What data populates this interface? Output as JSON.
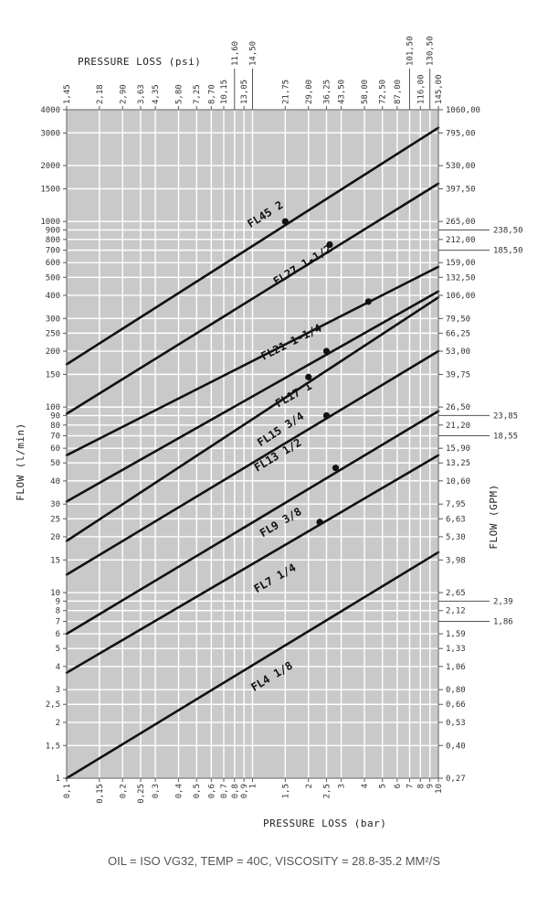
{
  "chart_data": {
    "type": "line",
    "title": "",
    "top_axis_title": "PRESSURE LOSS (psi)",
    "bottom_axis_title": "PRESSURE LOSS (bar)",
    "left_axis_title": "FLOW (l/min)",
    "right_axis_title": "FLOW (GPM)",
    "x_scale": "log",
    "y_scale": "log",
    "xlim": [
      0.1,
      10
    ],
    "ylim": [
      1,
      4000
    ],
    "grid": true,
    "x_ticks": [
      {
        "v": 0.1,
        "label": "0,1"
      },
      {
        "v": 0.15,
        "label": "0,15"
      },
      {
        "v": 0.2,
        "label": "0,2"
      },
      {
        "v": 0.25,
        "label": "0,25"
      },
      {
        "v": 0.3,
        "label": "0,3"
      },
      {
        "v": 0.4,
        "label": "0,4"
      },
      {
        "v": 0.5,
        "label": "0,5"
      },
      {
        "v": 0.6,
        "label": "0,6"
      },
      {
        "v": 0.7,
        "label": "0,7"
      },
      {
        "v": 0.8,
        "label": "0,8"
      },
      {
        "v": 0.9,
        "label": "0,9"
      },
      {
        "v": 1,
        "label": "1"
      },
      {
        "v": 1.5,
        "label": "1,5"
      },
      {
        "v": 2,
        "label": "2"
      },
      {
        "v": 2.5,
        "label": "2,5"
      },
      {
        "v": 3,
        "label": "3"
      },
      {
        "v": 4,
        "label": "4"
      },
      {
        "v": 5,
        "label": "5"
      },
      {
        "v": 6,
        "label": "6"
      },
      {
        "v": 7,
        "label": "7"
      },
      {
        "v": 8,
        "label": "8"
      },
      {
        "v": 9,
        "label": "9"
      },
      {
        "v": 10,
        "label": "10"
      }
    ],
    "psi_ticks_low": [
      {
        "v": 0.1,
        "label": "1,45"
      },
      {
        "v": 0.15,
        "label": "2,18"
      },
      {
        "v": 0.2,
        "label": "2,90"
      },
      {
        "v": 0.25,
        "label": "3,63"
      },
      {
        "v": 0.3,
        "label": "4,35"
      },
      {
        "v": 0.4,
        "label": "5,80"
      },
      {
        "v": 0.5,
        "label": "7,25"
      },
      {
        "v": 0.6,
        "label": "8,70"
      },
      {
        "v": 0.7,
        "label": "10,15"
      },
      {
        "v": 0.9,
        "label": "13,05"
      },
      {
        "v": 1.5,
        "label": "21,75"
      },
      {
        "v": 2,
        "label": "29,00"
      },
      {
        "v": 2.5,
        "label": "36,25"
      },
      {
        "v": 3,
        "label": "43,50"
      },
      {
        "v": 4,
        "label": "58,00"
      },
      {
        "v": 5,
        "label": "72,50"
      },
      {
        "v": 6,
        "label": "87,00"
      },
      {
        "v": 8,
        "label": "116,00"
      },
      {
        "v": 10,
        "label": "145,00"
      }
    ],
    "psi_ticks_high": [
      {
        "v": 0.8,
        "label": "11,60"
      },
      {
        "v": 1,
        "label": "14,50"
      },
      {
        "v": 7,
        "label": "101,50"
      },
      {
        "v": 9,
        "label": "130,50"
      }
    ],
    "y_ticks": [
      {
        "v": 1,
        "label": "1"
      },
      {
        "v": 1.5,
        "label": "1,5"
      },
      {
        "v": 2,
        "label": "2"
      },
      {
        "v": 2.5,
        "label": "2,5"
      },
      {
        "v": 3,
        "label": "3"
      },
      {
        "v": 4,
        "label": "4"
      },
      {
        "v": 5,
        "label": "5"
      },
      {
        "v": 6,
        "label": "6"
      },
      {
        "v": 7,
        "label": "7"
      },
      {
        "v": 8,
        "label": "8"
      },
      {
        "v": 9,
        "label": "9"
      },
      {
        "v": 10,
        "label": "10"
      },
      {
        "v": 15,
        "label": "15"
      },
      {
        "v": 20,
        "label": "20"
      },
      {
        "v": 25,
        "label": "25"
      },
      {
        "v": 30,
        "label": "30"
      },
      {
        "v": 40,
        "label": "40"
      },
      {
        "v": 50,
        "label": "50"
      },
      {
        "v": 60,
        "label": "60"
      },
      {
        "v": 70,
        "label": "70"
      },
      {
        "v": 80,
        "label": "80"
      },
      {
        "v": 90,
        "label": "90"
      },
      {
        "v": 100,
        "label": "100"
      },
      {
        "v": 150,
        "label": "150"
      },
      {
        "v": 200,
        "label": "200"
      },
      {
        "v": 250,
        "label": "250"
      },
      {
        "v": 300,
        "label": "300"
      },
      {
        "v": 400,
        "label": "400"
      },
      {
        "v": 500,
        "label": "500"
      },
      {
        "v": 600,
        "label": "600"
      },
      {
        "v": 700,
        "label": "700"
      },
      {
        "v": 800,
        "label": "800"
      },
      {
        "v": 900,
        "label": "900"
      },
      {
        "v": 1000,
        "label": "1000"
      },
      {
        "v": 1500,
        "label": "1500"
      },
      {
        "v": 2000,
        "label": "2000"
      },
      {
        "v": 3000,
        "label": "3000"
      },
      {
        "v": 4000,
        "label": "4000"
      }
    ],
    "gpm_ticks": [
      {
        "v": 1,
        "label": "0,27"
      },
      {
        "v": 1.5,
        "label": "0,40"
      },
      {
        "v": 2,
        "label": "0,53"
      },
      {
        "v": 2.5,
        "label": "0,66"
      },
      {
        "v": 3,
        "label": "0,80"
      },
      {
        "v": 4,
        "label": "1,06"
      },
      {
        "v": 5,
        "label": "1,33"
      },
      {
        "v": 6,
        "label": "1,59"
      },
      {
        "v": 8,
        "label": "2,12"
      },
      {
        "v": 10,
        "label": "2,65"
      },
      {
        "v": 15,
        "label": "3,98"
      },
      {
        "v": 20,
        "label": "5,30"
      },
      {
        "v": 25,
        "label": "6,63"
      },
      {
        "v": 30,
        "label": "7,95"
      },
      {
        "v": 40,
        "label": "10,60"
      },
      {
        "v": 50,
        "label": "13,25"
      },
      {
        "v": 60,
        "label": "15,90"
      },
      {
        "v": 80,
        "label": "21,20"
      },
      {
        "v": 100,
        "label": "26,50"
      },
      {
        "v": 150,
        "label": "39,75"
      },
      {
        "v": 200,
        "label": "53,00"
      },
      {
        "v": 250,
        "label": "66,25"
      },
      {
        "v": 300,
        "label": "79,50"
      },
      {
        "v": 400,
        "label": "106,00"
      },
      {
        "v": 500,
        "label": "132,50"
      },
      {
        "v": 600,
        "label": "159,00"
      },
      {
        "v": 800,
        "label": "212,00"
      },
      {
        "v": 1000,
        "label": "265,00"
      },
      {
        "v": 2000,
        "label": "530,00"
      },
      {
        "v": 1500,
        "label": "397,50"
      },
      {
        "v": 3000,
        "label": "795,00"
      },
      {
        "v": 4000,
        "label": "1060,00"
      }
    ],
    "gpm_ticks_extra": [
      {
        "v": 9,
        "label": "2,39"
      },
      {
        "v": 7,
        "label": "1,86"
      },
      {
        "v": 90,
        "label": "23,85"
      },
      {
        "v": 70,
        "label": "18,55"
      },
      {
        "v": 900,
        "label": "238,50"
      },
      {
        "v": 700,
        "label": "185,50"
      }
    ],
    "series": [
      {
        "name": "FL45 2",
        "x": [
          0.1,
          10
        ],
        "y": [
          170,
          3200
        ],
        "marker": {
          "x": 1.5,
          "y": 1000
        },
        "label_at": [
          1.2,
          1050
        ]
      },
      {
        "name": "FL27 1-1/2",
        "x": [
          0.1,
          10
        ],
        "y": [
          92,
          1600
        ],
        "marker": {
          "x": 2.6,
          "y": 750
        },
        "label_at": [
          1.9,
          560
        ]
      },
      {
        "name": "FL21 1-1/4",
        "x": [
          0.1,
          10
        ],
        "y": [
          55,
          570
        ],
        "marker": {
          "x": 4.2,
          "y": 370
        },
        "label_at": [
          1.65,
          215
        ]
      },
      {
        "name": "FL17 1",
        "x": [
          0.1,
          10
        ],
        "y": [
          31,
          420
        ],
        "marker": {
          "x": 2.5,
          "y": 200
        },
        "label_at": [
          1.7,
          112
        ]
      },
      {
        "name": "FL15 3/4",
        "x": [
          0.1,
          10
        ],
        "y": [
          19,
          390
        ],
        "marker": {
          "x": 2,
          "y": 145
        },
        "label_at": [
          1.45,
          73
        ]
      },
      {
        "name": "FL13 1/2",
        "x": [
          0.1,
          10
        ],
        "y": [
          12.5,
          200
        ],
        "marker": {
          "x": 2.5,
          "y": 90
        },
        "label_at": [
          1.4,
          53
        ]
      },
      {
        "name": "FL9 3/8",
        "x": [
          0.1,
          10
        ],
        "y": [
          6,
          95
        ],
        "marker": {
          "x": 2.8,
          "y": 47
        },
        "label_at": [
          1.45,
          23
        ]
      },
      {
        "name": "FL7 1/4",
        "x": [
          0.1,
          10
        ],
        "y": [
          3.7,
          55
        ],
        "marker": {
          "x": 2.3,
          "y": 24
        },
        "label_at": [
          1.35,
          11.5
        ]
      },
      {
        "name": "FL4 1/8",
        "x": [
          0.1,
          10
        ],
        "y": [
          1,
          16.5
        ],
        "marker": null,
        "label_at": [
          1.3,
          3.4
        ]
      }
    ]
  },
  "footnote": "OIL = ISO VG32, TEMP = 40C, VISCOSITY = 28.8-35.2 MM²/S"
}
